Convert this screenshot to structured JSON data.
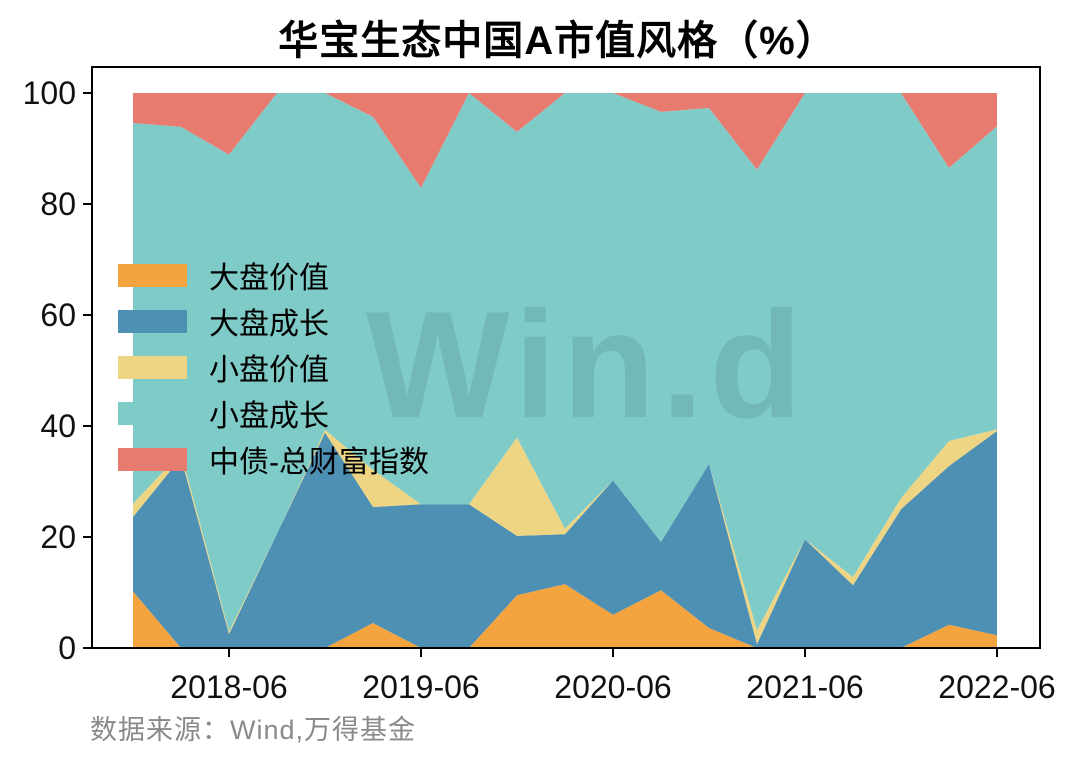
{
  "title": "华宝生态中国A市值风格（%）",
  "source_note": "数据来源：Wind,万得基金",
  "watermark_text": "Win.d",
  "chart_data": {
    "type": "area",
    "stacked": true,
    "stack_total": 100,
    "title": "华宝生态中国A市值风格（%）",
    "xlabel": "",
    "ylabel": "",
    "ylim": [
      0,
      100
    ],
    "grid": false,
    "legend_position": "upper-left-inside",
    "x": [
      "2017-12",
      "2018-03",
      "2018-06",
      "2018-09",
      "2018-12",
      "2019-03",
      "2019-06",
      "2019-09",
      "2019-12",
      "2020-03",
      "2020-06",
      "2020-09",
      "2020-12",
      "2021-03",
      "2021-06",
      "2021-09",
      "2021-12",
      "2022-03",
      "2022-06"
    ],
    "xticks": [
      "2018-06",
      "2019-06",
      "2020-06",
      "2021-06",
      "2022-06"
    ],
    "yticks": [
      0,
      20,
      40,
      60,
      80,
      100
    ],
    "series": [
      {
        "name": "大盘价值",
        "color": "#F3A43F",
        "values": [
          10.2,
          0,
          0,
          0,
          0,
          4.5,
          0,
          0,
          9.5,
          11.5,
          6.0,
          10.4,
          3.6,
          0,
          0,
          0,
          0,
          4.2,
          2.3
        ]
      },
      {
        "name": "大盘成长",
        "color": "#4E8FB4",
        "values": [
          13.4,
          34.3,
          2.5,
          20.6,
          38.8,
          20.9,
          25.9,
          25.9,
          10.7,
          9.0,
          24.2,
          8.7,
          29.6,
          0.7,
          19.6,
          11.3,
          25.0,
          28.6,
          36.8
        ]
      },
      {
        "name": "小盘价值",
        "color": "#EDD584",
        "values": [
          2.4,
          0.9,
          0.5,
          0,
          0.5,
          6.7,
          0,
          0,
          17.7,
          1.0,
          0,
          0,
          0,
          2.5,
          0,
          1.5,
          2.0,
          4.5,
          0.3
        ]
      },
      {
        "name": "小盘成长",
        "color": "#7FCBC8",
        "values": [
          68.6,
          58.7,
          85.9,
          79.4,
          60.7,
          63.6,
          57.0,
          74.1,
          55.1,
          78.5,
          69.8,
          77.5,
          64.1,
          83.0,
          80.4,
          87.2,
          73.0,
          49.2,
          54.6
        ]
      },
      {
        "name": "中债-总财富指数",
        "color": "#E87B70",
        "values": [
          5.4,
          6.1,
          11.1,
          0,
          0,
          4.3,
          17.1,
          0,
          7.0,
          0,
          0,
          3.4,
          2.7,
          13.8,
          0,
          0,
          0,
          13.5,
          6.0
        ]
      }
    ]
  }
}
